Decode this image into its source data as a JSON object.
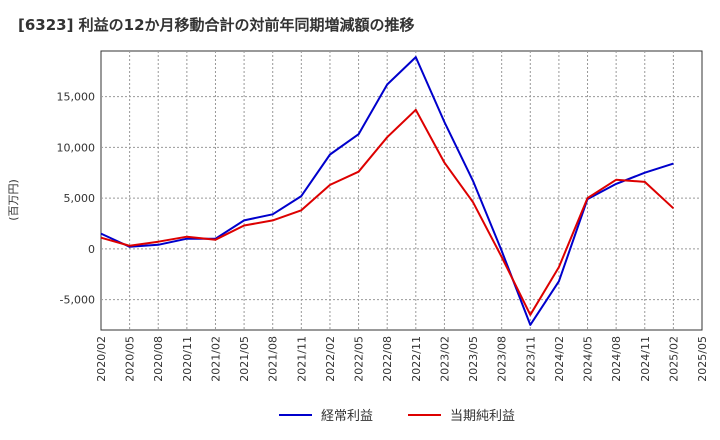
{
  "chart_data": {
    "type": "line",
    "title": "[6323]  利益の12か月移動合計の対前年同期増減額の推移",
    "ylabel": "(百万円)",
    "xlabel": "",
    "ylim": [
      -8000,
      19500
    ],
    "yticks": [
      -5000,
      0,
      5000,
      10000,
      15000
    ],
    "ytick_labels": [
      "-5,000",
      "0",
      "5,000",
      "10,000",
      "15,000"
    ],
    "x": [
      "2020/02",
      "2020/05",
      "2020/08",
      "2020/11",
      "2021/02",
      "2021/05",
      "2021/08",
      "2021/11",
      "2022/02",
      "2022/05",
      "2022/08",
      "2022/11",
      "2023/02",
      "2023/05",
      "2023/08",
      "2023/11",
      "2024/02",
      "2024/05",
      "2024/08",
      "2024/11",
      "2025/02",
      "2025/05"
    ],
    "grid": true,
    "legend_position": "bottom",
    "series": [
      {
        "name": "経常利益",
        "color": "#0000cc",
        "values": [
          1500,
          200,
          400,
          1000,
          1000,
          2800,
          3400,
          5200,
          9300,
          11300,
          16200,
          18900,
          12500,
          6700,
          -200,
          -7500,
          -3200,
          4900,
          6400,
          7500,
          8400,
          null
        ]
      },
      {
        "name": "当期純利益",
        "color": "#dd0000",
        "values": [
          1100,
          300,
          700,
          1200,
          900,
          2300,
          2800,
          3800,
          6300,
          7600,
          11000,
          13700,
          8500,
          4600,
          -800,
          -6500,
          -1800,
          5000,
          6800,
          6600,
          4000,
          null
        ]
      }
    ]
  }
}
